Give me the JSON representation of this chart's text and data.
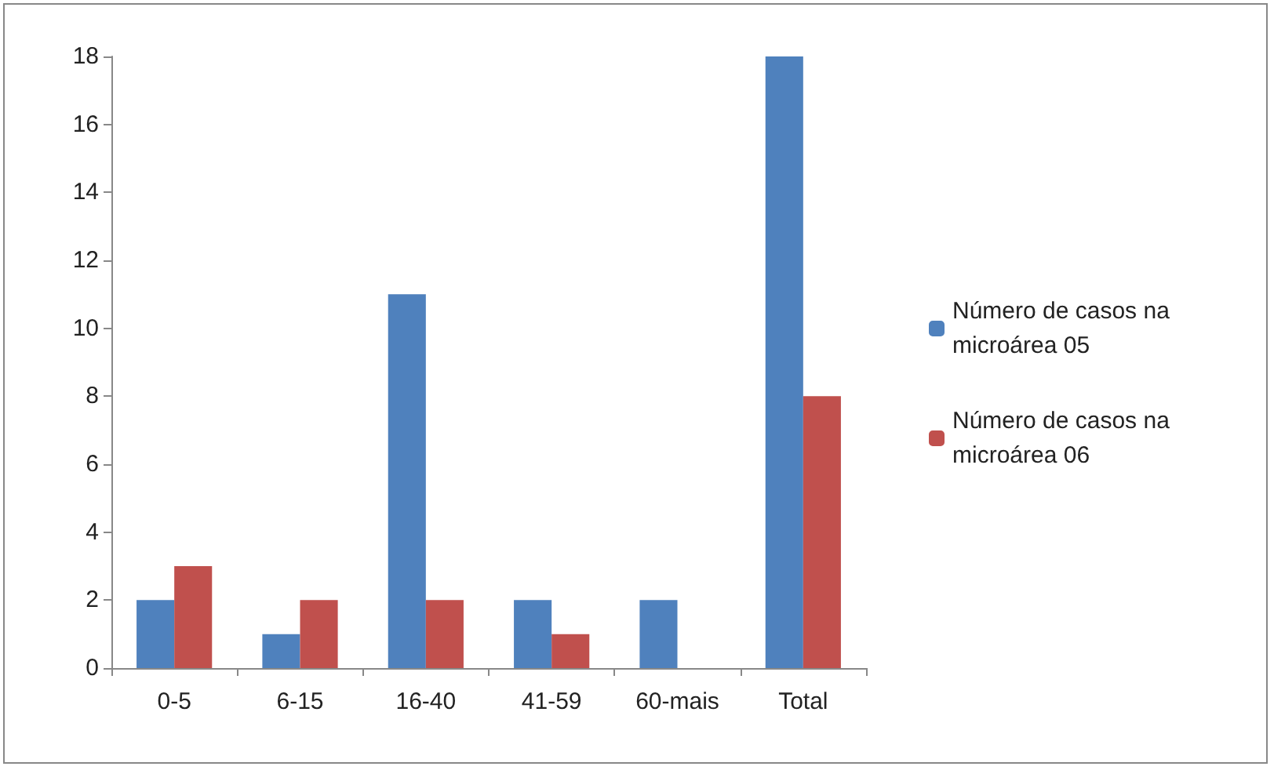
{
  "chart_data": {
    "type": "bar",
    "categories": [
      "0-5",
      "6-15",
      "16-40",
      "41-59",
      "60-mais",
      "Total"
    ],
    "series": [
      {
        "name": "Número de casos na microárea 05",
        "color": "#4f81bd",
        "values": [
          2,
          1,
          11,
          2,
          2,
          18
        ]
      },
      {
        "name": "Número de casos na microárea 06",
        "color": "#c0504d",
        "values": [
          3,
          2,
          2,
          1,
          0,
          8
        ]
      }
    ],
    "ylim": [
      0,
      18
    ],
    "yticks": [
      0,
      2,
      4,
      6,
      8,
      10,
      12,
      14,
      16,
      18
    ],
    "grid": false,
    "legend": "right"
  }
}
